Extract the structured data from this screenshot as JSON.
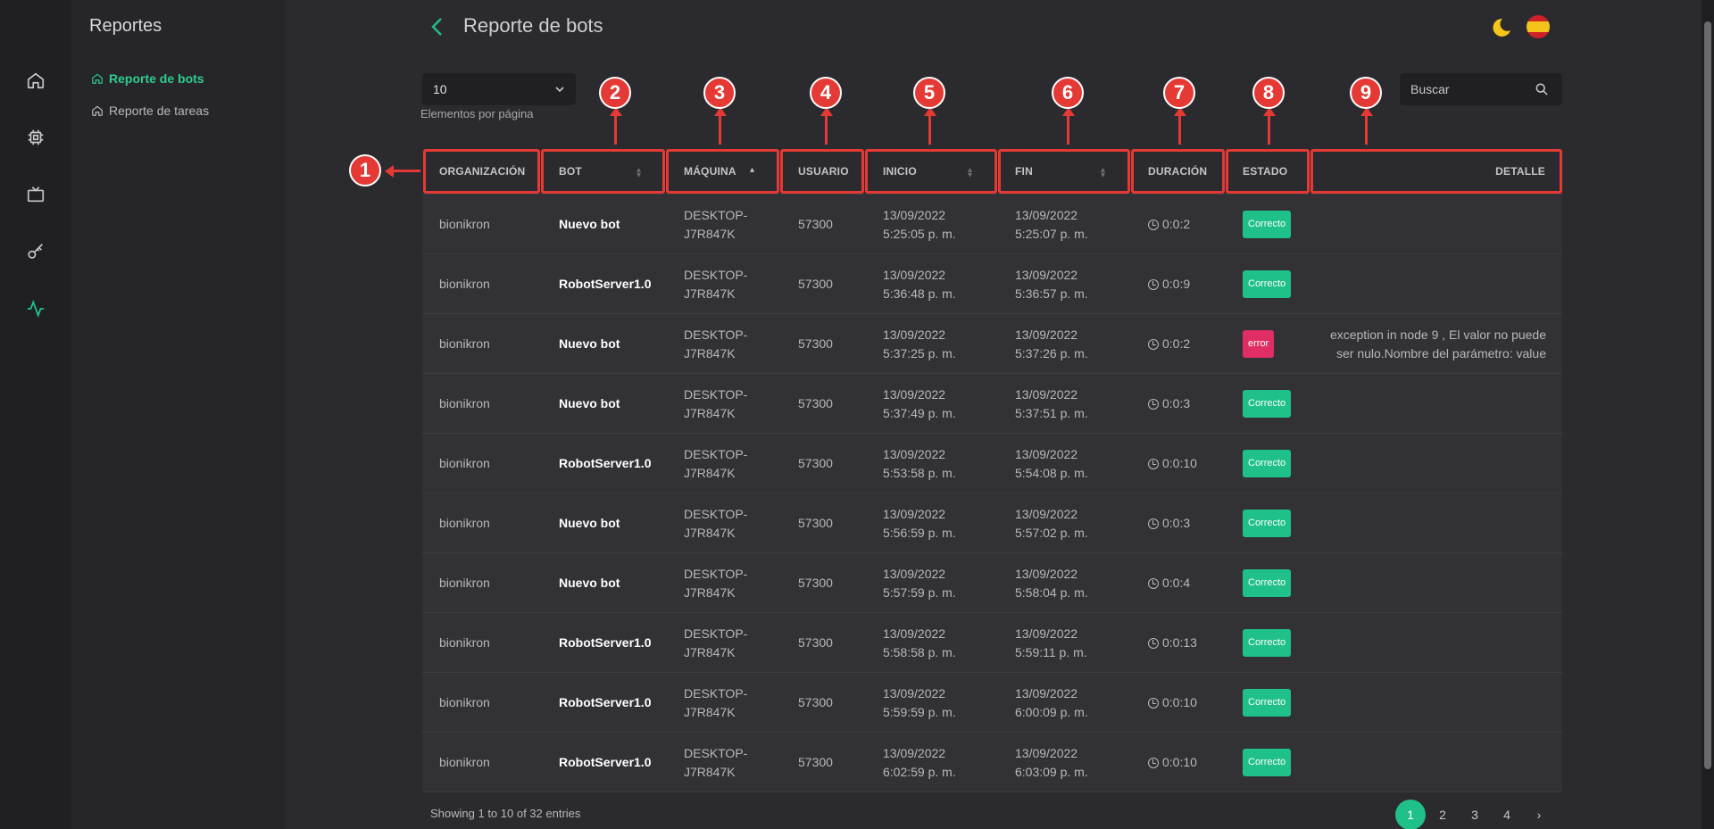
{
  "rail": {
    "items": [
      "home-icon",
      "chip-icon",
      "tv-icon",
      "key-icon",
      "activity-icon"
    ]
  },
  "sidebar": {
    "title": "Reportes",
    "items": [
      {
        "label": "Reporte de bots",
        "active": true
      },
      {
        "label": "Reporte de tareas",
        "active": false
      }
    ]
  },
  "header": {
    "title": "Reporte de bots"
  },
  "controls": {
    "per_page_value": "10",
    "per_page_label": "Elementos por página",
    "search_placeholder": "Buscar"
  },
  "table": {
    "columns": [
      "ORGANIZACIÓN",
      "BOT",
      "MÁQUINA",
      "USUARIO",
      "INICIO",
      "FIN",
      "DURACIÓN",
      "ESTADO",
      "DETALLE"
    ],
    "rows": [
      {
        "org": "bionikron",
        "bot": "Nuevo bot",
        "machine1": "DESKTOP-",
        "machine2": "J7R847K",
        "user": "57300",
        "start1": "13/09/2022",
        "start2": "5:25:05 p. m.",
        "end1": "13/09/2022",
        "end2": "5:25:07 p. m.",
        "duration": "0:0:2",
        "status": "Correcto",
        "detail1": "",
        "detail2": ""
      },
      {
        "org": "bionikron",
        "bot": "RobotServer1.0",
        "machine1": "DESKTOP-",
        "machine2": "J7R847K",
        "user": "57300",
        "start1": "13/09/2022",
        "start2": "5:36:48 p. m.",
        "end1": "13/09/2022",
        "end2": "5:36:57 p. m.",
        "duration": "0:0:9",
        "status": "Correcto",
        "detail1": "",
        "detail2": ""
      },
      {
        "org": "bionikron",
        "bot": "Nuevo bot",
        "machine1": "DESKTOP-",
        "machine2": "J7R847K",
        "user": "57300",
        "start1": "13/09/2022",
        "start2": "5:37:25 p. m.",
        "end1": "13/09/2022",
        "end2": "5:37:26 p. m.",
        "duration": "0:0:2",
        "status": "error",
        "detail1": "exception in node 9 , El valor no puede",
        "detail2": "ser nulo.Nombre del parámetro: value"
      },
      {
        "org": "bionikron",
        "bot": "Nuevo bot",
        "machine1": "DESKTOP-",
        "machine2": "J7R847K",
        "user": "57300",
        "start1": "13/09/2022",
        "start2": "5:37:49 p. m.",
        "end1": "13/09/2022",
        "end2": "5:37:51 p. m.",
        "duration": "0:0:3",
        "status": "Correcto",
        "detail1": "",
        "detail2": ""
      },
      {
        "org": "bionikron",
        "bot": "RobotServer1.0",
        "machine1": "DESKTOP-",
        "machine2": "J7R847K",
        "user": "57300",
        "start1": "13/09/2022",
        "start2": "5:53:58 p. m.",
        "end1": "13/09/2022",
        "end2": "5:54:08 p. m.",
        "duration": "0:0:10",
        "status": "Correcto",
        "detail1": "",
        "detail2": ""
      },
      {
        "org": "bionikron",
        "bot": "Nuevo bot",
        "machine1": "DESKTOP-",
        "machine2": "J7R847K",
        "user": "57300",
        "start1": "13/09/2022",
        "start2": "5:56:59 p. m.",
        "end1": "13/09/2022",
        "end2": "5:57:02 p. m.",
        "duration": "0:0:3",
        "status": "Correcto",
        "detail1": "",
        "detail2": ""
      },
      {
        "org": "bionikron",
        "bot": "Nuevo bot",
        "machine1": "DESKTOP-",
        "machine2": "J7R847K",
        "user": "57300",
        "start1": "13/09/2022",
        "start2": "5:57:59 p. m.",
        "end1": "13/09/2022",
        "end2": "5:58:04 p. m.",
        "duration": "0:0:4",
        "status": "Correcto",
        "detail1": "",
        "detail2": ""
      },
      {
        "org": "bionikron",
        "bot": "RobotServer1.0",
        "machine1": "DESKTOP-",
        "machine2": "J7R847K",
        "user": "57300",
        "start1": "13/09/2022",
        "start2": "5:58:58 p. m.",
        "end1": "13/09/2022",
        "end2": "5:59:11 p. m.",
        "duration": "0:0:13",
        "status": "Correcto",
        "detail1": "",
        "detail2": ""
      },
      {
        "org": "bionikron",
        "bot": "RobotServer1.0",
        "machine1": "DESKTOP-",
        "machine2": "J7R847K",
        "user": "57300",
        "start1": "13/09/2022",
        "start2": "5:59:59 p. m.",
        "end1": "13/09/2022",
        "end2": "6:00:09 p. m.",
        "duration": "0:0:10",
        "status": "Correcto",
        "detail1": "",
        "detail2": ""
      },
      {
        "org": "bionikron",
        "bot": "RobotServer1.0",
        "machine1": "DESKTOP-",
        "machine2": "J7R847K",
        "user": "57300",
        "start1": "13/09/2022",
        "start2": "6:02:59 p. m.",
        "end1": "13/09/2022",
        "end2": "6:03:09 p. m.",
        "duration": "0:0:10",
        "status": "Correcto",
        "detail1": "",
        "detail2": ""
      }
    ]
  },
  "footer": {
    "info": "Showing 1 to 10 of 32 entries",
    "pages": [
      "1",
      "2",
      "3",
      "4",
      "›"
    ],
    "active_page": "1"
  },
  "annotations": [
    "1",
    "2",
    "3",
    "4",
    "5",
    "6",
    "7",
    "8",
    "9"
  ],
  "colors": {
    "accent": "#20c08a",
    "error": "#e02e64",
    "annotation": "#e53935"
  }
}
